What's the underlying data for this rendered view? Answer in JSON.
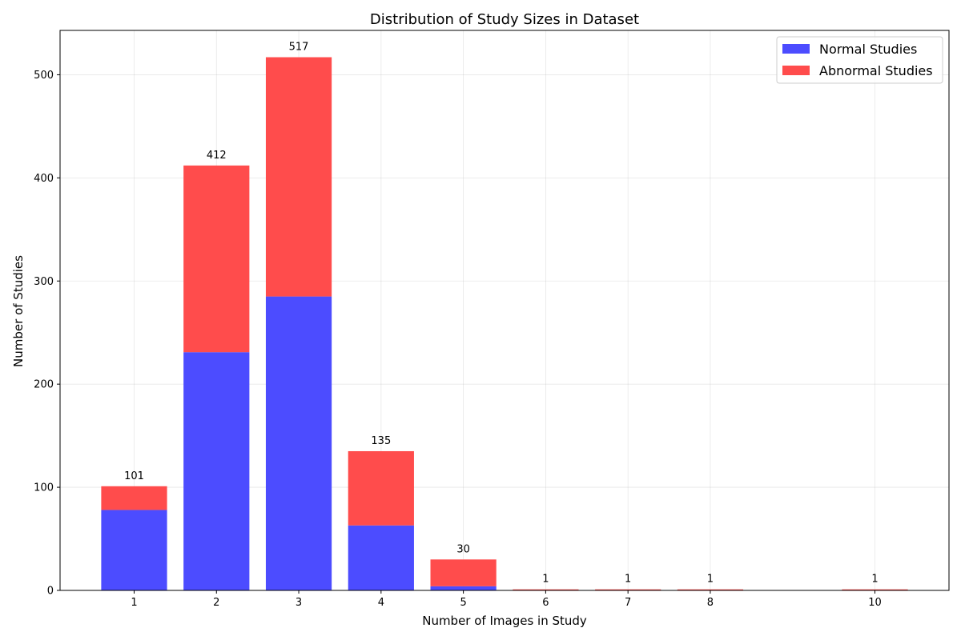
{
  "chart_data": {
    "type": "bar",
    "stacked": true,
    "title": "Distribution of Study Sizes in Dataset",
    "xlabel": "Number of Images in Study",
    "ylabel": "Number of Studies",
    "x": [
      1,
      2,
      3,
      4,
      5,
      6,
      7,
      8,
      10
    ],
    "xticks": [
      "1",
      "2",
      "3",
      "4",
      "5",
      "6",
      "7",
      "8",
      "10"
    ],
    "yticks": [
      "0",
      "100",
      "200",
      "300",
      "400",
      "500"
    ],
    "ylim": [
      0,
      543
    ],
    "xlim": [
      0.1,
      10.9
    ],
    "grid": true,
    "legend_position": "upper right",
    "series": [
      {
        "name": "Normal Studies",
        "color": "#4c4cff",
        "values": [
          78,
          231,
          285,
          63,
          4,
          0,
          0,
          0,
          0
        ]
      },
      {
        "name": "Abnormal Studies",
        "color": "#ff4c4c",
        "values": [
          23,
          181,
          232,
          72,
          26,
          1,
          1,
          1,
          1
        ]
      }
    ],
    "totals": [
      "101",
      "412",
      "517",
      "135",
      "30",
      "1",
      "1",
      "1",
      "1"
    ]
  }
}
